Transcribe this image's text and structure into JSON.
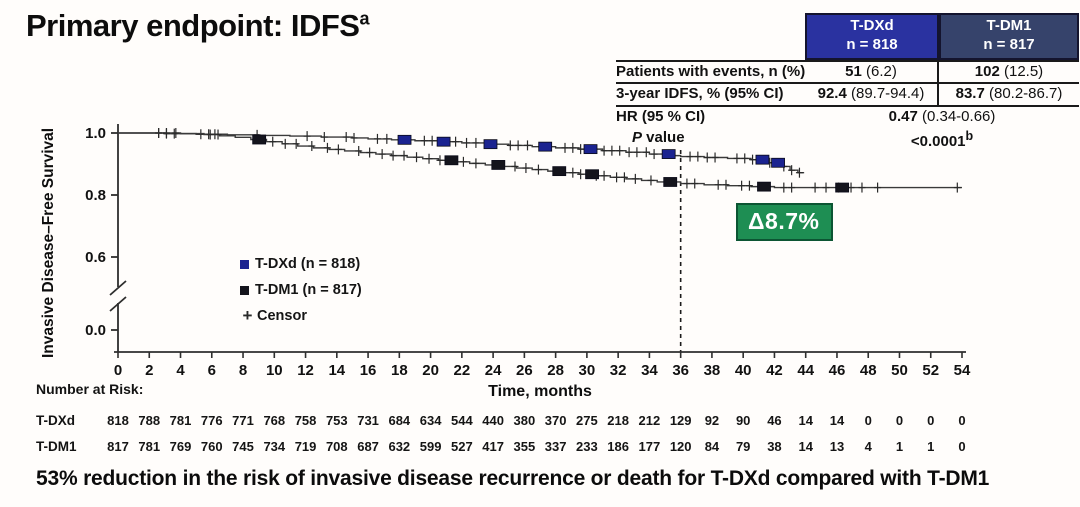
{
  "header": {
    "title": "Primary endpoint: IDFS",
    "title_sup": "a"
  },
  "results_table": {
    "columns": [
      {
        "name": "T-DXd",
        "n_label": "n = 818",
        "color": "#2a32a0"
      },
      {
        "name": "T-DM1",
        "n_label": "n = 817",
        "color": "#36436b"
      }
    ],
    "rows": {
      "events": {
        "label": "Patients with events, n (%)",
        "dxd_bold": "51",
        "dxd_rest": " (6.2)",
        "dm1_bold": "102",
        "dm1_rest": " (12.5)"
      },
      "idfs": {
        "label": "3-year IDFS, % (95% CI)",
        "dxd_bold": "92.4",
        "dxd_rest": " (89.7-94.4)",
        "dm1_bold": "83.7",
        "dm1_rest": " (80.2-86.7)"
      },
      "hr": {
        "label": "HR (95 % CI)",
        "value_bold": "0.47",
        "value_rest": " (0.34-0.66)"
      },
      "pvalue": {
        "label_italic": "P",
        "label_rest": " value",
        "value_bold": "<0.0001",
        "value_sup": "b"
      }
    }
  },
  "legend": {
    "dxd": "T-DXd (n = 818)",
    "dm1": "T-DM1 (n = 817)",
    "censor": "Censor",
    "censor_symbol": "+"
  },
  "annotation": {
    "delta_label": "Δ8.7%",
    "dashed_line_month": 36
  },
  "takeaway": {
    "text": "53% reduction in the risk of invasive disease recurrence or death for T-DXd compared with T-DM1"
  },
  "colors": {
    "dxd_header": "#2a32a0",
    "dm1_header": "#36436b",
    "dxd_marker": "#1b2390",
    "dm1_marker": "#14141c",
    "curve": "#3a3a3a",
    "delta_green": "#1e8e53"
  },
  "chart_data": {
    "type": "line",
    "subtype": "kaplan-meier-step",
    "title": "",
    "xlabel": "Time, months",
    "ylabel": "Invasive Disease–Free Survival",
    "xlim": [
      0,
      54
    ],
    "ylim_shown": [
      0.6,
      1.0
    ],
    "y_axis_break": true,
    "x_ticks": [
      0,
      2,
      4,
      6,
      8,
      10,
      12,
      14,
      16,
      18,
      20,
      22,
      24,
      26,
      28,
      30,
      32,
      34,
      36,
      38,
      40,
      42,
      44,
      46,
      48,
      50,
      52,
      54
    ],
    "y_ticks": [
      {
        "label": "1.0",
        "v": 1.0
      },
      {
        "label": "0.8",
        "v": 0.8
      },
      {
        "label": "0.6",
        "v": 0.6
      },
      {
        "label": "0.0",
        "v": 0.0
      }
    ],
    "grid": false,
    "legend_position": "inside-lower-left",
    "series": [
      {
        "name": "T-DXd (n = 818)",
        "marker_color": "#1b2390",
        "end_month": 43.9,
        "points": [
          [
            0,
            1.0
          ],
          [
            3,
            0.998
          ],
          [
            5,
            0.996
          ],
          [
            7,
            0.994
          ],
          [
            9,
            0.992
          ],
          [
            11,
            0.99
          ],
          [
            13,
            0.987
          ],
          [
            15,
            0.984
          ],
          [
            16,
            0.981
          ],
          [
            17.5,
            0.978
          ],
          [
            19,
            0.975
          ],
          [
            20.5,
            0.972
          ],
          [
            22,
            0.968
          ],
          [
            23.5,
            0.964
          ],
          [
            25,
            0.96
          ],
          [
            26.5,
            0.956
          ],
          [
            28,
            0.952
          ],
          [
            29.5,
            0.948
          ],
          [
            31,
            0.943
          ],
          [
            32.5,
            0.938
          ],
          [
            34,
            0.932
          ],
          [
            35.5,
            0.927
          ],
          [
            36,
            0.924
          ],
          [
            37.5,
            0.921
          ],
          [
            39,
            0.918
          ],
          [
            40.5,
            0.914
          ],
          [
            41.5,
            0.904
          ],
          [
            42.4,
            0.892
          ],
          [
            43,
            0.88
          ],
          [
            43.5,
            0.872
          ]
        ],
        "censor_months": [
          2.6,
          3.1,
          3.6,
          5.3,
          5.8,
          6.2,
          8.9,
          12.1,
          13.2,
          14.6,
          15.1,
          16.6,
          17.2,
          19.6,
          20.1,
          21.6,
          22.3,
          22.9,
          25.1,
          25.6,
          26.2,
          28.6,
          29.1,
          29.6,
          31.1,
          31.6,
          32.1,
          32.7,
          33.2,
          33.8,
          34.3,
          36.6,
          37.1,
          37.7,
          38.2,
          39.6,
          40.1,
          40.6,
          41.7,
          42.6,
          43.1,
          43.6
        ],
        "censor_cluster_months": [
          18.3,
          20.8,
          23.8,
          27.3,
          30.2,
          35.2,
          41.2,
          42.2
        ]
      },
      {
        "name": "T-DM1 (n = 817)",
        "marker_color": "#14141c",
        "end_month": 54,
        "points": [
          [
            0,
            1.0
          ],
          [
            4,
            0.998
          ],
          [
            5.5,
            0.995
          ],
          [
            6.5,
            0.991
          ],
          [
            7.5,
            0.986
          ],
          [
            8.5,
            0.979
          ],
          [
            9.5,
            0.972
          ],
          [
            10.5,
            0.965
          ],
          [
            11.5,
            0.958
          ],
          [
            12.5,
            0.952
          ],
          [
            13.5,
            0.947
          ],
          [
            14.5,
            0.942
          ],
          [
            15.5,
            0.937
          ],
          [
            16.5,
            0.932
          ],
          [
            17.5,
            0.927
          ],
          [
            18.5,
            0.922
          ],
          [
            19.5,
            0.917
          ],
          [
            20.5,
            0.912
          ],
          [
            21.5,
            0.907
          ],
          [
            22.5,
            0.902
          ],
          [
            23.5,
            0.897
          ],
          [
            24.5,
            0.892
          ],
          [
            25.5,
            0.887
          ],
          [
            26.5,
            0.882
          ],
          [
            27.5,
            0.877
          ],
          [
            28.5,
            0.872
          ],
          [
            29.5,
            0.867
          ],
          [
            30.5,
            0.862
          ],
          [
            31.5,
            0.857
          ],
          [
            32.5,
            0.852
          ],
          [
            33.5,
            0.847
          ],
          [
            34.5,
            0.842
          ],
          [
            36,
            0.837
          ],
          [
            37.5,
            0.833
          ],
          [
            39,
            0.83
          ],
          [
            40.5,
            0.827
          ],
          [
            42,
            0.824
          ]
        ],
        "censor_months": [
          2.6,
          3.1,
          3.7,
          5.9,
          6.4,
          9.9,
          10.7,
          11.4,
          12.4,
          13.4,
          14.1,
          15.4,
          16.1,
          16.9,
          17.6,
          18.3,
          19.1,
          19.9,
          20.6,
          22.1,
          22.9,
          25.4,
          26.1,
          26.9,
          29.1,
          29.6,
          30.6,
          31.1,
          31.9,
          32.4,
          33.1,
          34.1,
          36.4,
          36.9,
          38.4,
          38.9,
          39.9,
          40.4,
          42.6,
          43.1,
          44.6,
          45.3,
          46.1,
          46.9,
          47.6,
          48.6,
          53.7
        ],
        "censor_cluster_months": [
          9.0,
          21.3,
          24.3,
          28.2,
          30.3,
          35.3,
          41.3,
          46.3
        ]
      }
    ],
    "number_at_risk": {
      "title": "Number at Risk:",
      "months": [
        0,
        2,
        4,
        6,
        8,
        10,
        12,
        14,
        16,
        18,
        20,
        22,
        24,
        26,
        28,
        30,
        32,
        34,
        36,
        38,
        40,
        42,
        44,
        46,
        48,
        50,
        52,
        54
      ],
      "rows": [
        {
          "label": "T-DXd",
          "values": [
            818,
            788,
            781,
            776,
            771,
            768,
            758,
            753,
            731,
            684,
            634,
            544,
            440,
            380,
            370,
            275,
            218,
            212,
            129,
            92,
            90,
            46,
            14,
            14,
            0,
            0,
            0,
            0
          ]
        },
        {
          "label": "T-DM1",
          "values": [
            817,
            781,
            769,
            760,
            745,
            734,
            719,
            708,
            687,
            632,
            599,
            527,
            417,
            355,
            337,
            233,
            186,
            177,
            120,
            84,
            79,
            38,
            14,
            13,
            4,
            1,
            1,
            0
          ]
        }
      ]
    }
  }
}
